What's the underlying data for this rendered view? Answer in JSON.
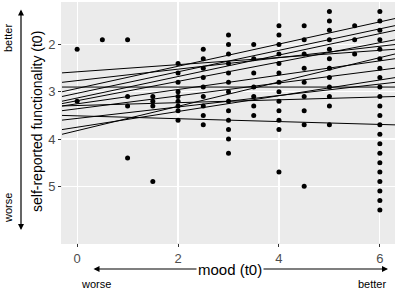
{
  "chart_data": {
    "type": "scatter",
    "x_label": "mood (t0)",
    "y_label": "self-reported functionality (t0)",
    "annotations": {
      "y_axis": [
        "better",
        "worse"
      ],
      "x_axis": [
        "worse",
        "better"
      ]
    },
    "xlim": [
      -0.3,
      6.3
    ],
    "xticks": [
      0,
      2,
      4,
      6
    ],
    "ylim": [
      6.2,
      1.1
    ],
    "yticks": [
      2,
      3,
      4,
      5
    ],
    "grid": true,
    "series": [
      {
        "type": "scatter",
        "color": "#000000",
        "marker": "circle",
        "x": [
          0,
          0,
          0.5,
          1,
          1,
          1,
          1,
          1.5,
          1.5,
          1.5,
          1.5,
          2,
          2,
          2,
          2,
          2,
          2,
          2,
          2,
          2,
          2.5,
          2.5,
          2.5,
          2.5,
          2.5,
          2.5,
          2.5,
          2.5,
          2.5,
          3,
          3,
          3,
          3,
          3,
          3,
          3,
          3,
          3,
          3,
          3,
          3,
          3,
          3.5,
          3.5,
          3.5,
          3.5,
          3.5,
          3.5,
          3.5,
          4,
          4,
          4,
          4,
          4,
          4,
          4,
          4,
          4,
          4,
          4,
          4,
          4,
          4.5,
          4.5,
          4.5,
          4.5,
          4.5,
          4.5,
          4.5,
          4.5,
          4.5,
          5,
          5,
          5,
          5,
          5,
          5,
          5,
          5,
          5,
          5,
          5,
          5,
          5.5,
          5.5,
          5.5,
          6,
          6,
          6,
          6,
          6,
          6,
          6,
          6,
          6,
          6,
          6,
          6,
          6,
          6,
          6,
          6,
          6,
          6,
          6,
          6,
          6,
          6
        ],
        "values": [
          2.1,
          3.2,
          1.9,
          1.9,
          3.1,
          3.3,
          4.4,
          3.1,
          3.2,
          3.3,
          4.9,
          2.4,
          2.6,
          2.8,
          3.0,
          3.1,
          3.2,
          3.3,
          3.4,
          3.6,
          2.1,
          2.3,
          2.5,
          2.7,
          2.9,
          3.1,
          3.3,
          3.5,
          3.7,
          1.8,
          2.0,
          2.2,
          2.4,
          2.6,
          2.8,
          3.0,
          3.2,
          3.4,
          3.6,
          3.8,
          4.0,
          4.3,
          2.0,
          2.3,
          2.6,
          2.9,
          3.1,
          3.3,
          3.5,
          1.6,
          1.8,
          2.0,
          2.2,
          2.4,
          2.6,
          2.8,
          3.0,
          3.2,
          3.4,
          3.6,
          3.8,
          4.7,
          1.6,
          1.9,
          2.2,
          2.5,
          2.8,
          3.1,
          3.4,
          3.7,
          5.0,
          1.3,
          1.5,
          1.7,
          1.9,
          2.1,
          2.3,
          2.5,
          2.7,
          2.9,
          3.1,
          3.3,
          3.7,
          1.6,
          1.9,
          2.2,
          1.3,
          1.5,
          1.7,
          1.9,
          2.1,
          2.3,
          2.5,
          2.7,
          2.9,
          3.1,
          3.3,
          3.5,
          3.7,
          3.9,
          4.1,
          4.3,
          4.5,
          4.7,
          4.9,
          5.1,
          5.3,
          5.5
        ]
      },
      {
        "type": "line",
        "color": "#000000",
        "line_style": "solid",
        "x": [
          -0.3,
          6.3
        ],
        "values": [
          3.0,
          1.45
        ]
      },
      {
        "type": "line",
        "color": "#000000",
        "line_style": "solid",
        "x": [
          -0.3,
          6.3
        ],
        "values": [
          3.1,
          1.6
        ]
      },
      {
        "type": "line",
        "color": "#000000",
        "line_style": "solid",
        "x": [
          -0.3,
          6.3
        ],
        "values": [
          3.2,
          1.7
        ]
      },
      {
        "type": "line",
        "color": "#000000",
        "line_style": "solid",
        "x": [
          -0.3,
          6.3
        ],
        "values": [
          3.25,
          1.9
        ]
      },
      {
        "type": "line",
        "color": "#000000",
        "line_style": "solid",
        "x": [
          -0.3,
          6.3
        ],
        "values": [
          2.8,
          2.0
        ]
      },
      {
        "type": "line",
        "color": "#000000",
        "line_style": "solid",
        "x": [
          -0.3,
          6.3
        ],
        "values": [
          2.6,
          2.1
        ]
      },
      {
        "type": "line",
        "color": "#000000",
        "line_style": "solid",
        "x": [
          -0.3,
          6.3
        ],
        "values": [
          3.3,
          2.3
        ]
      },
      {
        "type": "line",
        "color": "#000000",
        "line_style": "solid",
        "x": [
          -0.3,
          6.3
        ],
        "values": [
          3.4,
          2.5
        ]
      },
      {
        "type": "line",
        "color": "#000000",
        "line_style": "solid",
        "x": [
          -0.3,
          6.3
        ],
        "values": [
          3.9,
          2.2
        ]
      },
      {
        "type": "line",
        "color": "#000000",
        "line_style": "solid",
        "x": [
          -0.3,
          6.3
        ],
        "values": [
          3.8,
          2.7
        ]
      },
      {
        "type": "line",
        "color": "#000000",
        "line_style": "solid",
        "x": [
          -0.3,
          6.3
        ],
        "values": [
          3.3,
          3.1
        ]
      },
      {
        "type": "line",
        "color": "#000000",
        "line_style": "solid",
        "x": [
          -0.3,
          6.3
        ],
        "values": [
          3.5,
          3.7
        ]
      },
      {
        "type": "line",
        "color": "#000000",
        "line_style": "solid",
        "x": [
          -0.3,
          6.3
        ],
        "values": [
          3.6,
          2.8
        ]
      },
      {
        "type": "line",
        "color": "#000000",
        "line_style": "solid",
        "x": [
          -0.3,
          6.3
        ],
        "values": [
          2.9,
          2.9
        ]
      }
    ]
  }
}
